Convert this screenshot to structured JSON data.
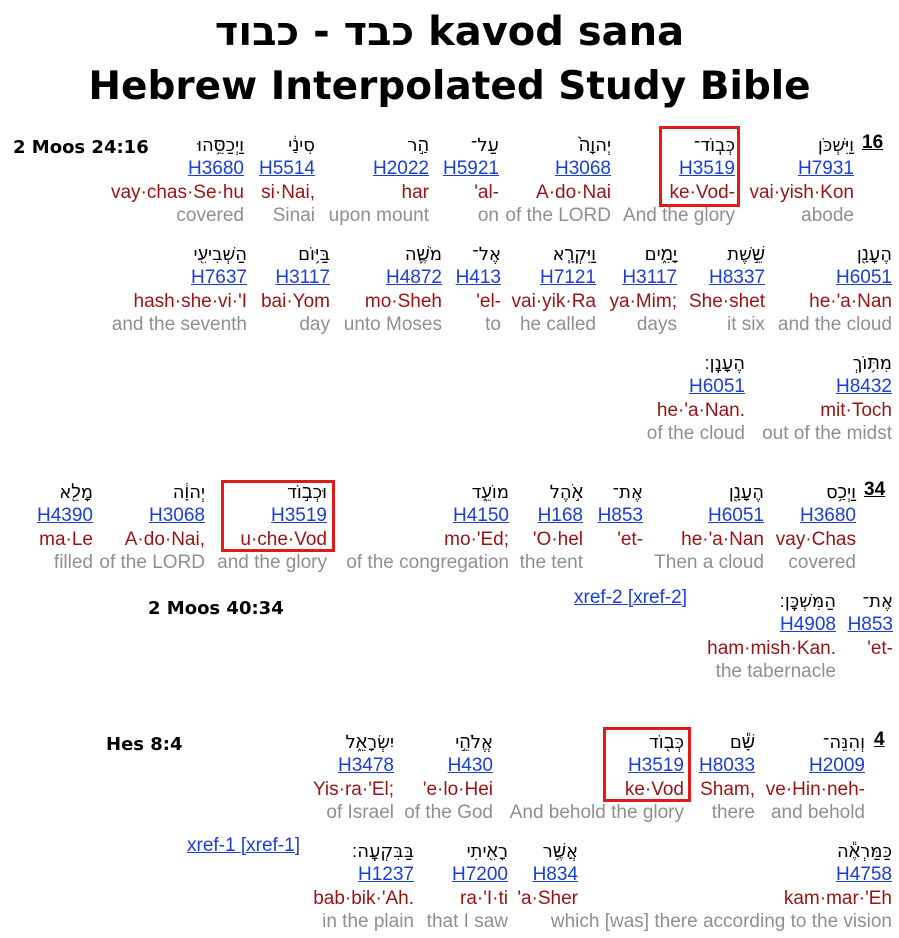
{
  "title_line1": "כבד - כבוד kavod sana",
  "title_line2": "Hebrew Interpolated Study Bible",
  "sections": [
    {
      "ref": "2 Moos 24:16",
      "verse_number": "16",
      "rows": [
        [
          {
            "hebrew": "וַיִּשְׁכֹּן",
            "strong": "H7931",
            "translit": "vai·yish·Kon",
            "gloss": "abode"
          },
          {
            "hebrew": "כְּבֽוֹד־",
            "strong": "H3519",
            "translit": "ke·Vod-",
            "gloss": "And the glory",
            "highlight": true
          },
          {
            "hebrew": "יְהוָה֙",
            "strong": "H3068",
            "translit": "A·do·Nai",
            "gloss": "of the LORD"
          },
          {
            "hebrew": "עַל־",
            "strong": "H5921",
            "translit": "'al-",
            "gloss": "on"
          },
          {
            "hebrew": "הַ֣ר",
            "strong": "H2022",
            "translit": "har",
            "gloss": "upon mount"
          },
          {
            "hebrew": "סִינַ֔י",
            "strong": "H5514",
            "translit": "si·Nai,",
            "gloss": "Sinai"
          },
          {
            "hebrew": "וַיְכַסֵּ֥הוּ",
            "strong": "H3680",
            "translit": "vay·chas·Se·hu",
            "gloss": "covered"
          }
        ],
        [
          {
            "hebrew": "הֶעָנָ֖ן",
            "strong": "H6051",
            "translit": "he·'a·Nan",
            "gloss": "and the cloud"
          },
          {
            "hebrew": "שֵׁ֣שֶׁת",
            "strong": "H8337",
            "translit": "She·shet",
            "gloss": "it six"
          },
          {
            "hebrew": "יָמִ֑ים",
            "strong": "H3117",
            "translit": "ya·Mim;",
            "gloss": "days"
          },
          {
            "hebrew": "וַיִּקְרָ֧א",
            "strong": "H7121",
            "translit": "vai·yik·Ra",
            "gloss": "he called"
          },
          {
            "hebrew": "אֶל־",
            "strong": "H413",
            "translit": "'el-",
            "gloss": "to"
          },
          {
            "hebrew": "מֹשֶׁ֛ה",
            "strong": "H4872",
            "translit": "mo·Sheh",
            "gloss": "unto Moses"
          },
          {
            "hebrew": "בַּיּ֥וֹם",
            "strong": "H3117",
            "translit": "bai·Yom",
            "gloss": "day"
          },
          {
            "hebrew": "הַשְּׁבִיעִ֖י",
            "strong": "H7637",
            "translit": "hash·she·vi·'I",
            "gloss": "and the seventh"
          }
        ],
        [
          {
            "hebrew": "מִתּ֥וֹךְ",
            "strong": "H8432",
            "translit": "mit·Toch",
            "gloss": "out of the midst"
          },
          {
            "hebrew": "הֶעָנָֽן׃",
            "strong": "H6051",
            "translit": "he·'a·Nan.",
            "gloss": "of the cloud"
          }
        ]
      ]
    },
    {
      "ref": "2 Moos 40:34",
      "verse_number": "34",
      "xref": [
        "xref-2",
        "[xref-2]"
      ],
      "rows": [
        [
          {
            "hebrew": "וַיְכַ֥ס",
            "strong": "H3680",
            "translit": "vay·Chas",
            "gloss": "covered"
          },
          {
            "hebrew": "הֶעָנָ֖ן",
            "strong": "H6051",
            "translit": "he·'a·Nan",
            "gloss": "Then a cloud"
          },
          {
            "hebrew": "אֶת־",
            "strong": "H853",
            "translit": "'et-",
            "gloss": ""
          },
          {
            "hebrew": "אֹ֣הֶל",
            "strong": "H168",
            "translit": "'O·hel",
            "gloss": "the tent"
          },
          {
            "hebrew": "מוֹעֵ֑ד",
            "strong": "H4150",
            "translit": "mo·'Ed;",
            "gloss": "of the congregation"
          },
          {
            "hebrew": "וּכְב֣וֹד",
            "strong": "H3519",
            "translit": "u·che·Vod",
            "gloss": "and the glory",
            "highlight": true
          },
          {
            "hebrew": "יְהוָ֔ה",
            "strong": "H3068",
            "translit": "A·do·Nai,",
            "gloss": "of the LORD"
          },
          {
            "hebrew": "מָלֵ֖א",
            "strong": "H4390",
            "translit": "ma·Le",
            "gloss": "filled"
          }
        ],
        [
          {
            "hebrew": "אֶת־",
            "strong": "H853",
            "translit": "'et-",
            "gloss": ""
          },
          {
            "hebrew": "הַמִּשְׁכָּֽן׃",
            "strong": "H4908",
            "translit": "ham·mish·Kan.",
            "gloss": "the tabernacle"
          }
        ]
      ]
    },
    {
      "ref": "Hes 8:4",
      "verse_number": "4",
      "xref": [
        "xref-1",
        "[xref-1]"
      ],
      "rows": [
        [
          {
            "hebrew": "וְהִנֵּה־",
            "strong": "H2009",
            "translit": "ve·Hin·neh-",
            "gloss": "and behold"
          },
          {
            "hebrew": "שָׁ֕ם",
            "strong": "H8033",
            "translit": "Sham,",
            "gloss": "there"
          },
          {
            "hebrew": "כְּב֖וֹד",
            "strong": "H3519",
            "translit": "ke·Vod",
            "gloss": "And behold the glory",
            "highlight": true
          },
          {
            "hebrew": "אֱלֹהֵ֣י",
            "strong": "H430",
            "translit": "'e·lo·Hei",
            "gloss": "of the God"
          },
          {
            "hebrew": "יִשְׂרָאֵ֑ל",
            "strong": "H3478",
            "translit": "Yis·ra·'El;",
            "gloss": "of Israel"
          }
        ],
        [
          {
            "hebrew": "כַּמַּרְאֶ֕ה",
            "strong": "H4758",
            "translit": "kam·mar·'Eh",
            "gloss": "which [was] there according to the vision"
          },
          {
            "hebrew": "אֲשֶׁ֥ר",
            "strong": "H834",
            "translit": "'a·Sher",
            "gloss": ""
          },
          {
            "hebrew": "רָאִ֖יתִי",
            "strong": "H7200",
            "translit": "ra·'I·ti",
            "gloss": "that I saw"
          },
          {
            "hebrew": "בַּבִּקְעָֽה׃",
            "strong": "H1237",
            "translit": "bab·bik·'Ah.",
            "gloss": "in the plain"
          }
        ]
      ]
    }
  ]
}
